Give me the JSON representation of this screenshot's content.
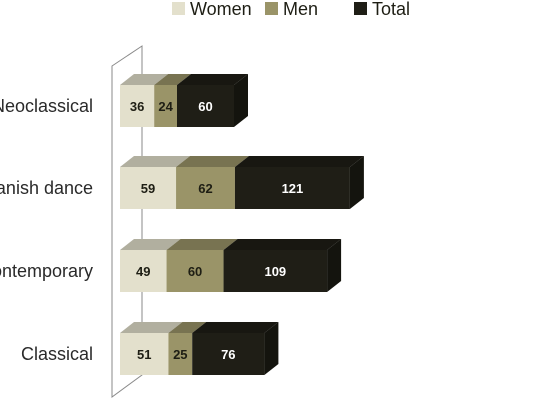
{
  "chart_data": {
    "type": "bar",
    "orientation": "horizontal",
    "stacked": true,
    "style": "3d",
    "legend_position": "top",
    "categories": [
      "Neoclassical",
      "Spanish dance",
      "Contemporary",
      "Classical"
    ],
    "series": [
      {
        "name": "Women",
        "values": [
          36,
          59,
          49,
          51
        ],
        "color": "#e3e0cc",
        "label_color": "#1e1e14"
      },
      {
        "name": "Men",
        "values": [
          24,
          62,
          60,
          25
        ],
        "color": "#9a9468",
        "label_color": "#1e1e14"
      },
      {
        "name": "Total",
        "values": [
          60,
          121,
          109,
          76
        ],
        "color": "#1f1e16",
        "label_color": "#ffffff"
      }
    ],
    "title": "",
    "xlabel": "",
    "ylabel": ""
  }
}
